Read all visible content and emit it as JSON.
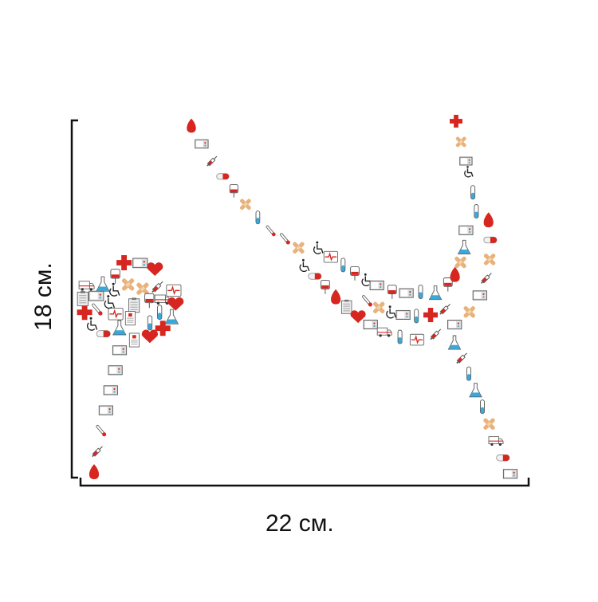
{
  "dimensions": {
    "width_label": "22 см.",
    "height_label": "18 см."
  },
  "artwork": {
    "subject": "stomach-organ-icon-mosaic",
    "icons": [
      "blood-drop-icon",
      "heart-icon",
      "medical-cross-icon",
      "pill-capsule-icon",
      "syringe-icon",
      "test-tube-icon",
      "flask-icon",
      "clipboard-icon",
      "bandage-icon",
      "ambulance-icon",
      "wheelchair-icon",
      "iv-bag-icon",
      "thermometer-icon",
      "ecg-heart-icon",
      "monitor-icon",
      "document-icon"
    ]
  },
  "colors": {
    "red": "#d6261f",
    "dark_red": "#a31515",
    "blue": "#3aa8d8",
    "tan": "#e8b27a",
    "gray": "#8a8a8a",
    "line": "#111111"
  }
}
